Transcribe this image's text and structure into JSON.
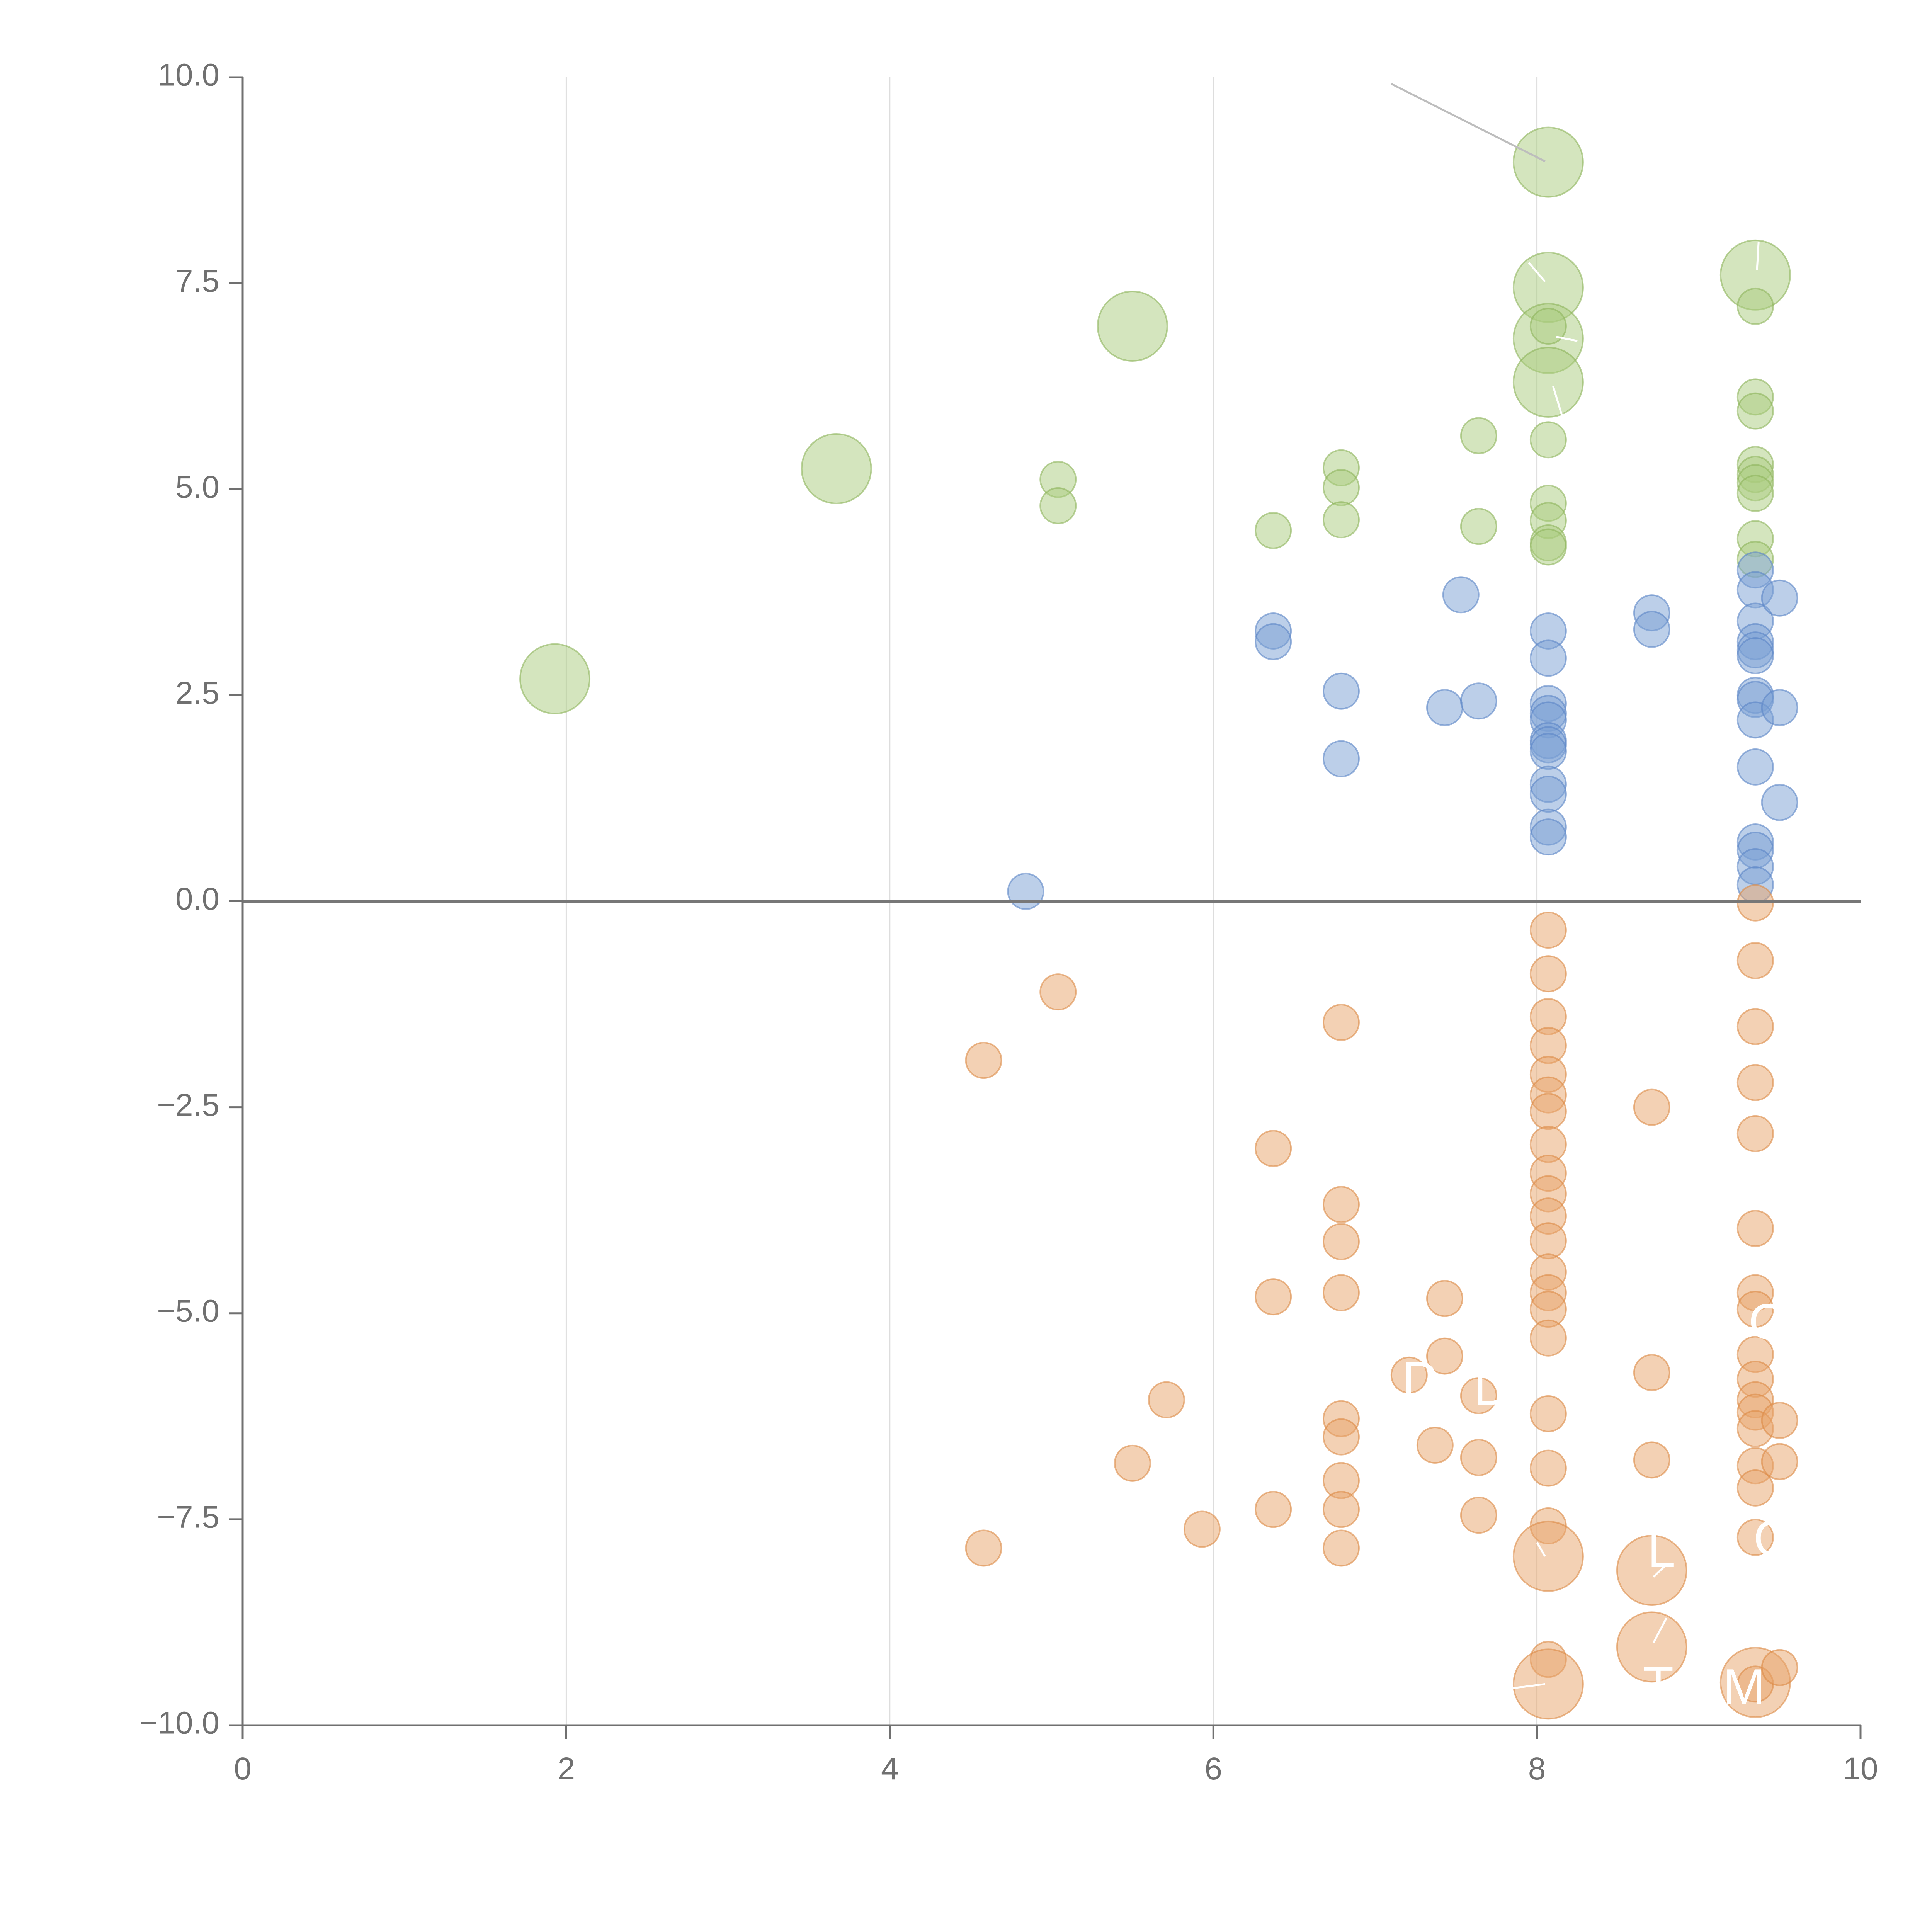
{
  "chart_data": {
    "type": "scatter",
    "title": "",
    "xlabel": "",
    "ylabel": "",
    "xlim": [
      0,
      10
    ],
    "ylim": [
      -10,
      10
    ],
    "xticks": [
      0,
      2,
      4,
      6,
      8,
      10
    ],
    "xtick_labels": [
      "0",
      "2",
      "4",
      "6",
      "8",
      "10"
    ],
    "yticks": [
      -10,
      -7.5,
      -5,
      -2.5,
      0,
      2.5,
      5,
      7.5,
      10
    ],
    "ytick_labels": [
      "−10.0",
      "−7.5",
      "−5.0",
      "−2.5",
      "0.0",
      "2.5",
      "5.0",
      "7.5",
      "10.0"
    ],
    "grid": "vertical",
    "zero_line": true,
    "colors": {
      "green_fill": "#a9cc7d",
      "green_stroke": "#8db45c",
      "blue_fill": "#7a9fd4",
      "blue_stroke": "#5b86c6",
      "orange_fill": "#e8a46a",
      "orange_stroke": "#dc8a46",
      "axis": "#707070",
      "grid": "#dddddd",
      "zero_line": "#777777",
      "connector": "#bdbdbd"
    },
    "series": [
      {
        "name": "green",
        "color": "#a9cc7d",
        "points": [
          {
            "x": 1.93,
            "y": 2.7,
            "size": 3
          },
          {
            "x": 3.67,
            "y": 5.25,
            "size": 3
          },
          {
            "x": 5.5,
            "y": 6.98,
            "size": 3
          },
          {
            "x": 5.04,
            "y": 5.12,
            "size": 1
          },
          {
            "x": 5.04,
            "y": 4.8,
            "size": 1
          },
          {
            "x": 6.37,
            "y": 4.5,
            "size": 1
          },
          {
            "x": 6.79,
            "y": 5.26,
            "size": 1
          },
          {
            "x": 6.79,
            "y": 5.02,
            "size": 1
          },
          {
            "x": 6.79,
            "y": 4.63,
            "size": 1
          },
          {
            "x": 7.64,
            "y": 5.65,
            "size": 1
          },
          {
            "x": 7.64,
            "y": 4.55,
            "size": 1
          },
          {
            "x": 8.07,
            "y": 8.97,
            "size": 3
          },
          {
            "x": 8.07,
            "y": 7.45,
            "size": 3
          },
          {
            "x": 8.07,
            "y": 6.83,
            "size": 3
          },
          {
            "x": 8.07,
            "y": 6.3,
            "size": 3
          },
          {
            "x": 8.07,
            "y": 6.98,
            "size": 1
          },
          {
            "x": 8.07,
            "y": 5.6,
            "size": 1
          },
          {
            "x": 8.07,
            "y": 4.83,
            "size": 1
          },
          {
            "x": 8.07,
            "y": 4.62,
            "size": 1
          },
          {
            "x": 8.07,
            "y": 4.35,
            "size": 1
          },
          {
            "x": 8.07,
            "y": 4.3,
            "size": 1
          },
          {
            "x": 9.35,
            "y": 7.6,
            "size": 3
          },
          {
            "x": 9.35,
            "y": 7.22,
            "size": 1
          },
          {
            "x": 9.35,
            "y": 6.12,
            "size": 1
          },
          {
            "x": 9.35,
            "y": 5.95,
            "size": 1
          },
          {
            "x": 9.35,
            "y": 5.3,
            "size": 1
          },
          {
            "x": 9.35,
            "y": 5.18,
            "size": 1
          },
          {
            "x": 9.35,
            "y": 5.08,
            "size": 1
          },
          {
            "x": 9.35,
            "y": 4.95,
            "size": 1
          },
          {
            "x": 9.35,
            "y": 4.4,
            "size": 1
          },
          {
            "x": 9.35,
            "y": 4.15,
            "size": 1
          }
        ]
      },
      {
        "name": "blue",
        "color": "#7a9fd4",
        "points": [
          {
            "x": 4.84,
            "y": 0.12,
            "size": 1
          },
          {
            "x": 6.37,
            "y": 3.28,
            "size": 1
          },
          {
            "x": 6.37,
            "y": 3.15,
            "size": 1
          },
          {
            "x": 6.79,
            "y": 2.55,
            "size": 1
          },
          {
            "x": 6.79,
            "y": 1.73,
            "size": 1
          },
          {
            "x": 7.43,
            "y": 2.35,
            "size": 1
          },
          {
            "x": 7.53,
            "y": 3.72,
            "size": 1
          },
          {
            "x": 7.64,
            "y": 2.43,
            "size": 1
          },
          {
            "x": 8.07,
            "y": 3.28,
            "size": 1
          },
          {
            "x": 8.07,
            "y": 2.95,
            "size": 1
          },
          {
            "x": 8.07,
            "y": 2.4,
            "size": 1
          },
          {
            "x": 8.07,
            "y": 2.28,
            "size": 1
          },
          {
            "x": 8.07,
            "y": 2.2,
            "size": 1
          },
          {
            "x": 8.07,
            "y": 1.95,
            "size": 1
          },
          {
            "x": 8.07,
            "y": 1.9,
            "size": 1
          },
          {
            "x": 8.07,
            "y": 1.82,
            "size": 1
          },
          {
            "x": 8.07,
            "y": 1.42,
            "size": 1
          },
          {
            "x": 8.07,
            "y": 1.3,
            "size": 1
          },
          {
            "x": 8.07,
            "y": 0.9,
            "size": 1
          },
          {
            "x": 8.07,
            "y": 0.78,
            "size": 1
          },
          {
            "x": 8.71,
            "y": 3.5,
            "size": 1
          },
          {
            "x": 8.71,
            "y": 3.3,
            "size": 1
          },
          {
            "x": 9.35,
            "y": 4.02,
            "size": 1
          },
          {
            "x": 9.35,
            "y": 3.78,
            "size": 1
          },
          {
            "x": 9.35,
            "y": 3.4,
            "size": 1
          },
          {
            "x": 9.35,
            "y": 3.15,
            "size": 1
          },
          {
            "x": 9.35,
            "y": 3.05,
            "size": 1
          },
          {
            "x": 9.35,
            "y": 2.98,
            "size": 1
          },
          {
            "x": 9.35,
            "y": 2.5,
            "size": 1
          },
          {
            "x": 9.35,
            "y": 2.45,
            "size": 1
          },
          {
            "x": 9.35,
            "y": 2.2,
            "size": 1
          },
          {
            "x": 9.35,
            "y": 1.63,
            "size": 1
          },
          {
            "x": 9.35,
            "y": 0.72,
            "size": 1
          },
          {
            "x": 9.35,
            "y": 0.62,
            "size": 1
          },
          {
            "x": 9.35,
            "y": 0.42,
            "size": 1
          },
          {
            "x": 9.35,
            "y": 0.2,
            "size": 1
          },
          {
            "x": 9.5,
            "y": 3.68,
            "size": 1
          },
          {
            "x": 9.5,
            "y": 2.35,
            "size": 1
          },
          {
            "x": 9.5,
            "y": 1.2,
            "size": 1
          }
        ]
      },
      {
        "name": "orange",
        "color": "#e8a46a",
        "points": [
          {
            "x": 4.58,
            "y": -1.93,
            "size": 1
          },
          {
            "x": 4.58,
            "y": -7.85,
            "size": 1
          },
          {
            "x": 5.04,
            "y": -1.1,
            "size": 1
          },
          {
            "x": 5.5,
            "y": -6.82,
            "size": 1
          },
          {
            "x": 5.71,
            "y": -6.05,
            "size": 1
          },
          {
            "x": 5.93,
            "y": -7.62,
            "size": 1
          },
          {
            "x": 6.37,
            "y": -3.0,
            "size": 1
          },
          {
            "x": 6.37,
            "y": -4.8,
            "size": 1
          },
          {
            "x": 6.37,
            "y": -7.38,
            "size": 1
          },
          {
            "x": 6.79,
            "y": -1.47,
            "size": 1
          },
          {
            "x": 6.79,
            "y": -3.68,
            "size": 1
          },
          {
            "x": 6.79,
            "y": -4.13,
            "size": 1
          },
          {
            "x": 6.79,
            "y": -4.75,
            "size": 1
          },
          {
            "x": 6.79,
            "y": -6.28,
            "size": 1
          },
          {
            "x": 6.79,
            "y": -6.5,
            "size": 1
          },
          {
            "x": 6.79,
            "y": -7.03,
            "size": 1
          },
          {
            "x": 6.79,
            "y": -7.38,
            "size": 1
          },
          {
            "x": 6.79,
            "y": -7.85,
            "size": 1
          },
          {
            "x": 7.21,
            "y": -5.75,
            "size": 1
          },
          {
            "x": 7.37,
            "y": -6.6,
            "size": 1
          },
          {
            "x": 7.43,
            "y": -4.82,
            "size": 1
          },
          {
            "x": 7.43,
            "y": -5.52,
            "size": 1
          },
          {
            "x": 7.64,
            "y": -6.0,
            "size": 1
          },
          {
            "x": 7.64,
            "y": -6.75,
            "size": 1
          },
          {
            "x": 7.64,
            "y": -7.45,
            "size": 1
          },
          {
            "x": 8.07,
            "y": -0.35,
            "size": 1
          },
          {
            "x": 8.07,
            "y": -0.88,
            "size": 1
          },
          {
            "x": 8.07,
            "y": -1.4,
            "size": 1
          },
          {
            "x": 8.07,
            "y": -1.75,
            "size": 1
          },
          {
            "x": 8.07,
            "y": -2.1,
            "size": 1
          },
          {
            "x": 8.07,
            "y": -2.35,
            "size": 1
          },
          {
            "x": 8.07,
            "y": -2.55,
            "size": 1
          },
          {
            "x": 8.07,
            "y": -2.95,
            "size": 1
          },
          {
            "x": 8.07,
            "y": -3.3,
            "size": 1
          },
          {
            "x": 8.07,
            "y": -3.55,
            "size": 1
          },
          {
            "x": 8.07,
            "y": -3.82,
            "size": 1
          },
          {
            "x": 8.07,
            "y": -4.12,
            "size": 1
          },
          {
            "x": 8.07,
            "y": -4.5,
            "size": 1
          },
          {
            "x": 8.07,
            "y": -4.75,
            "size": 1
          },
          {
            "x": 8.07,
            "y": -4.95,
            "size": 1
          },
          {
            "x": 8.07,
            "y": -5.3,
            "size": 1
          },
          {
            "x": 8.07,
            "y": -6.22,
            "size": 1
          },
          {
            "x": 8.07,
            "y": -6.88,
            "size": 1
          },
          {
            "x": 8.07,
            "y": -7.58,
            "size": 1
          },
          {
            "x": 8.07,
            "y": -9.2,
            "size": 1
          },
          {
            "x": 8.07,
            "y": -7.95,
            "size": 3
          },
          {
            "x": 8.07,
            "y": -9.5,
            "size": 3
          },
          {
            "x": 8.71,
            "y": -2.5,
            "size": 1
          },
          {
            "x": 8.71,
            "y": -5.72,
            "size": 1
          },
          {
            "x": 8.71,
            "y": -6.78,
            "size": 1
          },
          {
            "x": 8.71,
            "y": -8.12,
            "size": 3
          },
          {
            "x": 8.71,
            "y": -9.05,
            "size": 3
          },
          {
            "x": 9.35,
            "y": -0.02,
            "size": 1
          },
          {
            "x": 9.35,
            "y": -0.72,
            "size": 1
          },
          {
            "x": 9.35,
            "y": -1.52,
            "size": 1
          },
          {
            "x": 9.35,
            "y": -2.2,
            "size": 1
          },
          {
            "x": 9.35,
            "y": -2.82,
            "size": 1
          },
          {
            "x": 9.35,
            "y": -3.97,
            "size": 1
          },
          {
            "x": 9.35,
            "y": -4.75,
            "size": 1
          },
          {
            "x": 9.35,
            "y": -4.95,
            "size": 1
          },
          {
            "x": 9.35,
            "y": -5.5,
            "size": 1
          },
          {
            "x": 9.35,
            "y": -5.8,
            "size": 1
          },
          {
            "x": 9.35,
            "y": -6.05,
            "size": 1
          },
          {
            "x": 9.35,
            "y": -6.2,
            "size": 1
          },
          {
            "x": 9.35,
            "y": -6.4,
            "size": 1
          },
          {
            "x": 9.35,
            "y": -6.85,
            "size": 1
          },
          {
            "x": 9.35,
            "y": -7.12,
            "size": 1
          },
          {
            "x": 9.35,
            "y": -7.72,
            "size": 1
          },
          {
            "x": 9.35,
            "y": -9.48,
            "size": 3
          },
          {
            "x": 9.35,
            "y": -9.5,
            "size": 1
          },
          {
            "x": 9.5,
            "y": -6.3,
            "size": 1
          },
          {
            "x": 9.5,
            "y": -6.8,
            "size": 1
          },
          {
            "x": 9.5,
            "y": -9.3,
            "size": 1
          }
        ]
      }
    ],
    "annotations": [
      {
        "text": "C",
        "x": 9.42,
        "y": -5.15,
        "color": "#ffffff"
      },
      {
        "text": "D",
        "x": 7.28,
        "y": -5.85,
        "color": "#ffffff"
      },
      {
        "text": "D",
        "x": 7.72,
        "y": -5.95,
        "color": "#ffffff"
      },
      {
        "text": "L",
        "x": 8.77,
        "y": -7.92,
        "color": "#ffffff"
      },
      {
        "text": "C",
        "x": 9.45,
        "y": -7.78,
        "color": "#ffffff"
      },
      {
        "text": "T",
        "x": 8.75,
        "y": -9.55,
        "color": "#ffffff"
      },
      {
        "text": "M",
        "x": 9.28,
        "y": -9.58,
        "color": "#ffffff"
      }
    ],
    "connectors": [
      {
        "from": [
          7.1,
          9.92
        ],
        "to": [
          8.05,
          8.98
        ],
        "color": "#bdbdbd"
      },
      {
        "from": [
          7.95,
          7.75
        ],
        "to": [
          8.05,
          7.52
        ],
        "color": "#ffffff"
      },
      {
        "from": [
          9.37,
          8.0
        ],
        "to": [
          9.36,
          7.66
        ],
        "color": "#ffffff"
      },
      {
        "from": [
          8.12,
          6.85
        ],
        "to": [
          8.25,
          6.8
        ],
        "color": "#ffffff"
      },
      {
        "from": [
          8.1,
          6.25
        ],
        "to": [
          8.2,
          5.6
        ],
        "color": "#ffffff"
      },
      {
        "from": [
          8.72,
          -8.2
        ],
        "to": [
          8.8,
          -8.05
        ],
        "color": "#ffffff"
      },
      {
        "from": [
          8.72,
          -9.0
        ],
        "to": [
          8.8,
          -8.7
        ],
        "color": "#ffffff"
      },
      {
        "from": [
          7.85,
          -9.55
        ],
        "to": [
          8.05,
          -9.5
        ],
        "color": "#ffffff"
      },
      {
        "from": [
          8.05,
          -7.95
        ],
        "to": [
          8.0,
          -7.78
        ],
        "color": "#ffffff"
      }
    ]
  }
}
